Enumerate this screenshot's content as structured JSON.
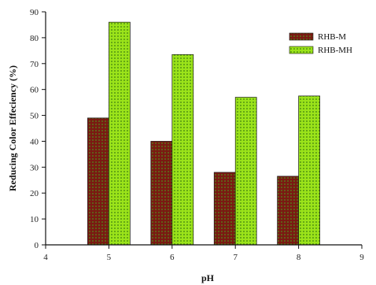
{
  "chart_data": {
    "type": "bar",
    "title": "",
    "xlabel": "pH",
    "ylabel": "Reducing Color Effeciency (%)",
    "x": [
      5,
      6,
      7,
      8
    ],
    "xlim": [
      4,
      9
    ],
    "ylim": [
      0,
      90
    ],
    "x_ticks": [
      "4",
      "5",
      "6",
      "7",
      "8",
      "9"
    ],
    "y_ticks": [
      "0",
      "10",
      "20",
      "30",
      "40",
      "50",
      "60",
      "70",
      "80",
      "90"
    ],
    "legend_position": "top-right",
    "grid": false,
    "series": [
      {
        "name": "RHB-M",
        "values": [
          49,
          40,
          28,
          26.5
        ],
        "color": "#7a1a12",
        "dot_color": "#4f8f1a"
      },
      {
        "name": "RHB-MH",
        "values": [
          86,
          73.5,
          57,
          57.5
        ],
        "color": "#9be31a",
        "dot_color": "#3f7f10"
      }
    ]
  }
}
